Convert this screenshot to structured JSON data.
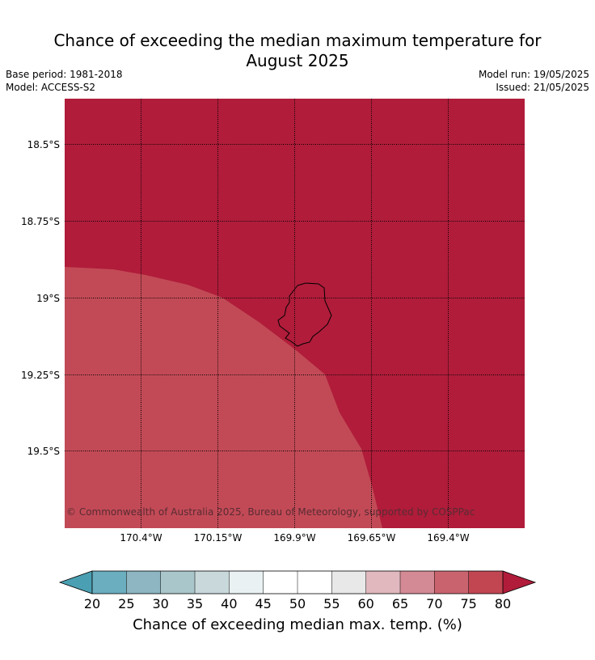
{
  "title_line1": "Chance of exceeding the median maximum temperature for",
  "title_line2": "August 2025",
  "meta": {
    "base_period": "Base period: 1981-2018",
    "model": "Model: ACCESS-S2",
    "model_run": "Model run: 19/05/2025",
    "issued": "Issued: 21/05/2025"
  },
  "map": {
    "lat_labels": [
      "18.5°S",
      "18.75°S",
      "19°S",
      "19.25°S",
      "19.5°S"
    ],
    "lon_labels": [
      "170.4°W",
      "170.15°W",
      "169.9°W",
      "169.65°W",
      "169.4°W"
    ],
    "region_colors": {
      "outer": "#b01c3a",
      "inner": "#c24a56"
    },
    "copyright": "© Commonwealth of Australia 2025, Bureau of Meteorology, supported by COSPPac"
  },
  "colorbar": {
    "ticks": [
      "20",
      "25",
      "30",
      "35",
      "40",
      "45",
      "50",
      "55",
      "60",
      "65",
      "70",
      "75",
      "80"
    ],
    "colors": [
      "#6aaebf",
      "#8db5c2",
      "#a9c6cb",
      "#c9d9db",
      "#e9f1f2",
      "#ffffff",
      "#ffffff",
      "#e8e8e8",
      "#e0b8bd",
      "#d48a94",
      "#c9646f",
      "#c14652"
    ],
    "low_extend_color": "#4b9fb2",
    "high_extend_color": "#b01c3a",
    "label": "Chance of exceeding median max. temp. (%)"
  }
}
